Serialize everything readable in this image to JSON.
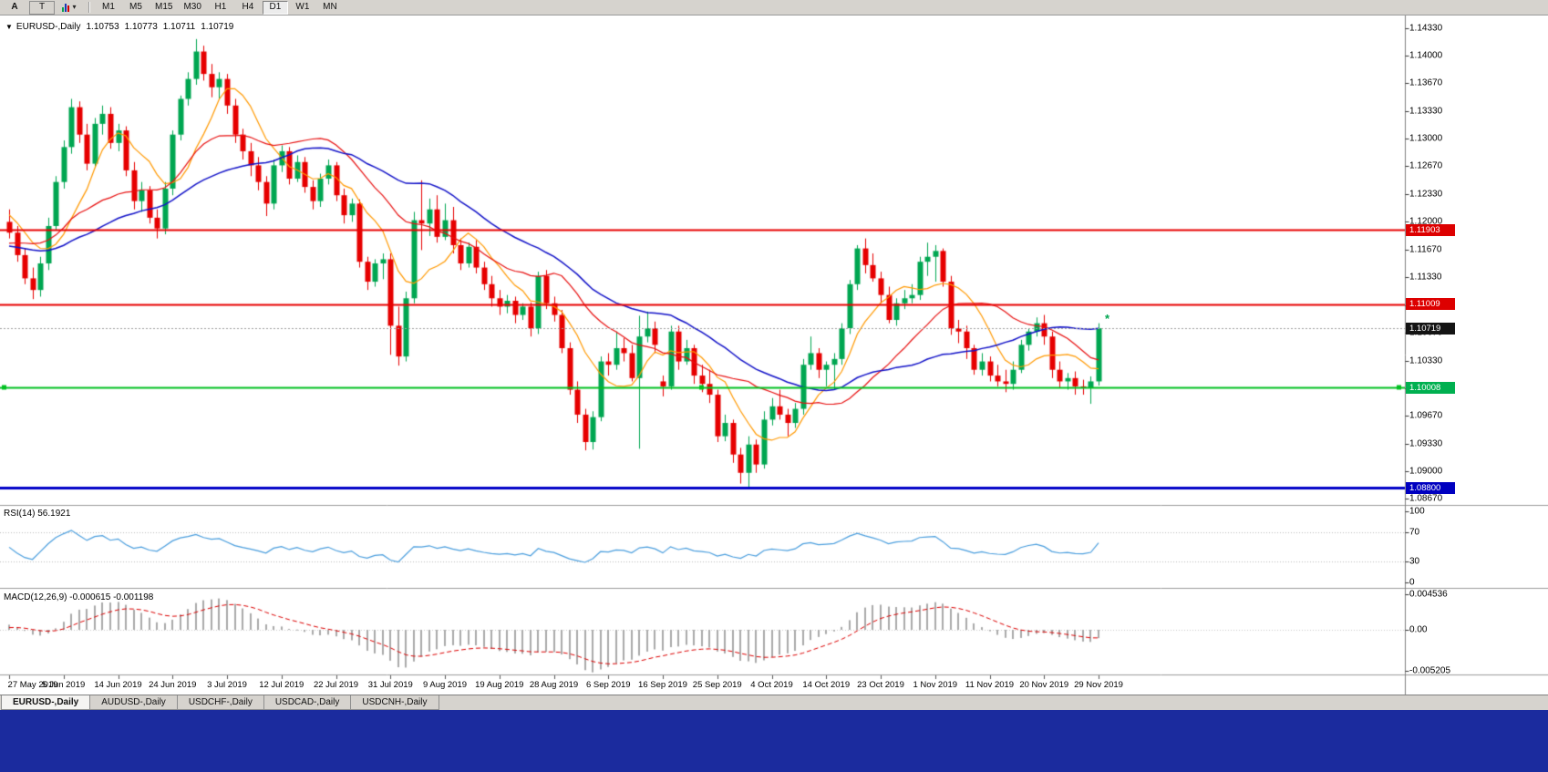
{
  "toolbar": {
    "left_buttons": [
      {
        "label": "A"
      },
      {
        "label": "T"
      }
    ],
    "tools_dropdown": {
      "icon": "chart-tools-icon",
      "caret": "▾"
    },
    "timeframes": [
      "M1",
      "M5",
      "M15",
      "M30",
      "H1",
      "H4",
      "D1",
      "W1",
      "MN"
    ],
    "active_timeframe": "D1"
  },
  "chart": {
    "info_line": {
      "expand_glyph": "▼",
      "symbol": "EURUSD-,Daily",
      "open": "1.10753",
      "high": "1.10773",
      "low": "1.10711",
      "close": "1.10719"
    },
    "price_axis": {
      "ticks": [
        "1.14330",
        "1.14000",
        "1.13670",
        "1.13330",
        "1.13000",
        "1.12670",
        "1.12330",
        "1.12000",
        "1.11670",
        "1.11330",
        "1.11000",
        "1.10670",
        "1.10330",
        "1.10000",
        "1.09670",
        "1.09330",
        "1.09000",
        "1.08670"
      ],
      "badges": [
        {
          "label": "1.11903",
          "value": 1.11903,
          "color": "#dd0000"
        },
        {
          "label": "1.11009",
          "value": 1.11009,
          "color": "#dd0000"
        },
        {
          "label": "1.10719",
          "value": 1.10719,
          "color": "#141414"
        },
        {
          "label": "1.10008",
          "value": 1.10008,
          "color": "#00b050"
        },
        {
          "label": "1.08800",
          "value": 1.088,
          "color": "#0000c0"
        }
      ]
    },
    "hlines": [
      {
        "value": 1.11903,
        "color": "#e80000",
        "width": 2,
        "handles": false
      },
      {
        "value": 1.11009,
        "color": "#e80000",
        "width": 2,
        "handles": false
      },
      {
        "value": 1.10008,
        "color": "#00c020",
        "width": 2,
        "handles": true
      },
      {
        "value": 1.088,
        "color": "#0000c8",
        "width": 3,
        "handles": false
      }
    ],
    "current_price": {
      "value": 1.10719,
      "line_color": "#a0a0a0"
    },
    "marker": {
      "glyph": "*",
      "price": 1.1082,
      "color": "#00a651"
    },
    "time_axis": [
      "27 May 2019",
      "5 Jun 2019",
      "14 Jun 2019",
      "24 Jun 2019",
      "3 Jul 2019",
      "12 Jul 2019",
      "22 Jul 2019",
      "31 Jul 2019",
      "9 Aug 2019",
      "19 Aug 2019",
      "28 Aug 2019",
      "6 Sep 2019",
      "16 Sep 2019",
      "25 Sep 2019",
      "4 Oct 2019",
      "14 Oct 2019",
      "23 Oct 2019",
      "1 Nov 2019",
      "11 Nov 2019",
      "20 Nov 2019",
      "29 Nov 2019"
    ]
  },
  "chart_data": {
    "type": "candlestick",
    "symbol": "EURUSD",
    "timeframe": "Daily",
    "title": "EURUSD-,Daily",
    "y_axis": {
      "min": 1.086,
      "max": 1.1448
    },
    "moving_averages": [
      {
        "name": "ma-fast",
        "method": "sma",
        "period": 8,
        "color": "#ff9900"
      },
      {
        "name": "ma-mid",
        "method": "sma",
        "period": 20,
        "color": "#e81010"
      },
      {
        "name": "ma-slow",
        "method": "sma",
        "period": 34,
        "color": "#1212c8"
      }
    ],
    "pre_history_closes": [
      1.1305,
      1.1298,
      1.129,
      1.1282,
      1.1288,
      1.1275,
      1.1268,
      1.1272,
      1.126,
      1.1252,
      1.1258,
      1.1245,
      1.1238,
      1.1242,
      1.123,
      1.1222,
      1.1228,
      1.1215,
      1.1208,
      1.1212,
      1.12,
      1.1195,
      1.1202,
      1.1188,
      1.118,
      1.1185,
      1.1172,
      1.1165,
      1.117,
      1.1158,
      1.115,
      1.1155,
      1.1162,
      1.1148,
      1.114,
      1.1145,
      1.1152,
      1.1138,
      1.113,
      1.1135,
      1.1128,
      1.1122,
      1.1118,
      1.1125,
      1.116,
      1.1185,
      1.1205,
      1.122,
      1.1235,
      1.1225,
      1.1215,
      1.1208,
      1.1198,
      1.1205,
      1.1195
    ],
    "candles": [
      [
        1.12,
        1.1215,
        1.118,
        1.1187
      ],
      [
        1.1187,
        1.1195,
        1.1152,
        1.116
      ],
      [
        1.116,
        1.1168,
        1.1125,
        1.1132
      ],
      [
        1.1132,
        1.1145,
        1.1107,
        1.1118
      ],
      [
        1.1118,
        1.1158,
        1.111,
        1.115
      ],
      [
        1.115,
        1.1205,
        1.1142,
        1.1195
      ],
      [
        1.1195,
        1.1255,
        1.119,
        1.1248
      ],
      [
        1.1248,
        1.1298,
        1.124,
        1.129
      ],
      [
        1.129,
        1.1348,
        1.1282,
        1.1338
      ],
      [
        1.1338,
        1.1345,
        1.1295,
        1.1305
      ],
      [
        1.1305,
        1.1318,
        1.1262,
        1.127
      ],
      [
        1.127,
        1.1325,
        1.1265,
        1.1318
      ],
      [
        1.1318,
        1.134,
        1.1305,
        1.133
      ],
      [
        1.133,
        1.1338,
        1.1288,
        1.1295
      ],
      [
        1.1295,
        1.1318,
        1.1285,
        1.131
      ],
      [
        1.131,
        1.1315,
        1.1255,
        1.1262
      ],
      [
        1.1262,
        1.1272,
        1.1215,
        1.1225
      ],
      [
        1.1225,
        1.1248,
        1.1212,
        1.1238
      ],
      [
        1.1238,
        1.1243,
        1.1198,
        1.1205
      ],
      [
        1.1205,
        1.1215,
        1.118,
        1.1192
      ],
      [
        1.1192,
        1.1248,
        1.1185,
        1.124
      ],
      [
        1.124,
        1.131,
        1.1232,
        1.1305
      ],
      [
        1.1305,
        1.1352,
        1.1298,
        1.1348
      ],
      [
        1.1348,
        1.138,
        1.134,
        1.1372
      ],
      [
        1.1372,
        1.142,
        1.1365,
        1.1405
      ],
      [
        1.1405,
        1.1412,
        1.137,
        1.1378
      ],
      [
        1.1378,
        1.139,
        1.135,
        1.1362
      ],
      [
        1.1362,
        1.138,
        1.1348,
        1.1372
      ],
      [
        1.1372,
        1.1378,
        1.133,
        1.134
      ],
      [
        1.134,
        1.1348,
        1.1295,
        1.1305
      ],
      [
        1.1305,
        1.1312,
        1.1275,
        1.1285
      ],
      [
        1.1285,
        1.1295,
        1.1255,
        1.1268
      ],
      [
        1.1268,
        1.1278,
        1.1238,
        1.1248
      ],
      [
        1.1248,
        1.1255,
        1.1207,
        1.1222
      ],
      [
        1.1222,
        1.1275,
        1.1215,
        1.1268
      ],
      [
        1.1268,
        1.1292,
        1.126,
        1.1285
      ],
      [
        1.1285,
        1.129,
        1.1245,
        1.1252
      ],
      [
        1.1252,
        1.128,
        1.1248,
        1.1272
      ],
      [
        1.1272,
        1.1278,
        1.1235,
        1.1242
      ],
      [
        1.1242,
        1.125,
        1.1215,
        1.1225
      ],
      [
        1.1225,
        1.1258,
        1.1218,
        1.1252
      ],
      [
        1.1252,
        1.1275,
        1.1245,
        1.1268
      ],
      [
        1.1268,
        1.1272,
        1.1225,
        1.1232
      ],
      [
        1.1232,
        1.124,
        1.1198,
        1.1208
      ],
      [
        1.1208,
        1.1228,
        1.12,
        1.1222
      ],
      [
        1.1222,
        1.1227,
        1.1145,
        1.1152
      ],
      [
        1.1152,
        1.1158,
        1.1118,
        1.1128
      ],
      [
        1.1128,
        1.1155,
        1.1122,
        1.115
      ],
      [
        1.115,
        1.1162,
        1.1131,
        1.1155
      ],
      [
        1.1155,
        1.1162,
        1.104,
        1.1075
      ],
      [
        1.1075,
        1.1098,
        1.1027,
        1.1038
      ],
      [
        1.1038,
        1.1116,
        1.1032,
        1.1108
      ],
      [
        1.1108,
        1.1212,
        1.1102,
        1.1202
      ],
      [
        1.1202,
        1.125,
        1.1166,
        1.1198
      ],
      [
        1.1198,
        1.1228,
        1.1183,
        1.1215
      ],
      [
        1.1215,
        1.1232,
        1.1175,
        1.1182
      ],
      [
        1.1182,
        1.1222,
        1.1178,
        1.1202
      ],
      [
        1.1202,
        1.1218,
        1.1162,
        1.1172
      ],
      [
        1.1172,
        1.118,
        1.1142,
        1.115
      ],
      [
        1.115,
        1.1175,
        1.1145,
        1.117
      ],
      [
        1.117,
        1.1178,
        1.1138,
        1.1145
      ],
      [
        1.1145,
        1.1152,
        1.1118,
        1.1125
      ],
      [
        1.1125,
        1.1135,
        1.1098,
        1.1108
      ],
      [
        1.1108,
        1.1118,
        1.1088,
        1.1098
      ],
      [
        1.1098,
        1.1112,
        1.109,
        1.1105
      ],
      [
        1.1105,
        1.111,
        1.1078,
        1.1088
      ],
      [
        1.1088,
        1.1102,
        1.1082,
        1.1098
      ],
      [
        1.1098,
        1.1103,
        1.1062,
        1.1072
      ],
      [
        1.1072,
        1.114,
        1.1065,
        1.1135
      ],
      [
        1.1135,
        1.1142,
        1.1095,
        1.1102
      ],
      [
        1.1102,
        1.111,
        1.108,
        1.1088
      ],
      [
        1.1088,
        1.1094,
        1.1042,
        1.1048
      ],
      [
        1.1048,
        1.1055,
        1.0992,
        1.0998
      ],
      [
        1.0998,
        1.1008,
        1.0958,
        1.0968
      ],
      [
        1.0968,
        1.0975,
        1.0925,
        1.0935
      ],
      [
        1.0935,
        1.0972,
        1.0926,
        1.0965
      ],
      [
        1.0965,
        1.1038,
        1.096,
        1.1032
      ],
      [
        1.1032,
        1.1042,
        1.1015,
        1.1028
      ],
      [
        1.1028,
        1.1068,
        1.1022,
        1.1048
      ],
      [
        1.1048,
        1.106,
        1.1032,
        1.1042
      ],
      [
        1.1042,
        1.1052,
        1.1008,
        1.1012
      ],
      [
        1.1012,
        1.1087,
        1.0927,
        1.1062
      ],
      [
        1.1062,
        1.1092,
        1.1055,
        1.1072
      ],
      [
        1.1072,
        1.108,
        1.1042,
        1.1052
      ],
      [
        1.1008,
        1.1015,
        1.099,
        1.1002
      ],
      [
        1.1002,
        1.1075,
        1.0998,
        1.1068
      ],
      [
        1.1068,
        1.1075,
        1.1022,
        1.1032
      ],
      [
        1.1032,
        1.1058,
        1.1028,
        1.1048
      ],
      [
        1.1048,
        1.1052,
        1.1005,
        1.1015
      ],
      [
        1.1015,
        1.1028,
        1.0995,
        1.1005
      ],
      [
        1.1005,
        1.1022,
        1.0982,
        1.0992
      ],
      [
        1.0992,
        1.0998,
        1.0935,
        1.0942
      ],
      [
        1.0942,
        1.0968,
        1.0936,
        1.0958
      ],
      [
        1.0958,
        1.0962,
        1.091,
        1.092
      ],
      [
        1.092,
        1.0928,
        1.0885,
        1.0898
      ],
      [
        1.0898,
        1.0942,
        1.0879,
        1.0932
      ],
      [
        1.0932,
        1.0938,
        1.0898,
        1.0908
      ],
      [
        1.0908,
        1.0972,
        1.0903,
        1.0962
      ],
      [
        1.0962,
        1.0988,
        1.0955,
        1.0978
      ],
      [
        1.0978,
        1.0998,
        1.0962,
        1.0968
      ],
      [
        1.0968,
        1.0975,
        1.0942,
        1.0958
      ],
      [
        1.0958,
        1.0982,
        1.0952,
        1.0975
      ],
      [
        1.0975,
        1.1035,
        1.0968,
        1.1028
      ],
      [
        1.1028,
        1.1062,
        1.1022,
        1.1042
      ],
      [
        1.1042,
        1.1048,
        1.1012,
        1.1022
      ],
      [
        1.1022,
        1.1032,
        1.1002,
        1.1028
      ],
      [
        1.1028,
        1.1042,
        1.0998,
        1.1035
      ],
      [
        1.1035,
        1.1078,
        1.1028,
        1.1072
      ],
      [
        1.1072,
        1.113,
        1.1065,
        1.1125
      ],
      [
        1.1125,
        1.1172,
        1.1118,
        1.1168
      ],
      [
        1.1168,
        1.118,
        1.1138,
        1.1148
      ],
      [
        1.1148,
        1.1162,
        1.1128,
        1.1132
      ],
      [
        1.1132,
        1.114,
        1.1102,
        1.1112
      ],
      [
        1.1112,
        1.1122,
        1.1078,
        1.1082
      ],
      [
        1.1082,
        1.1108,
        1.1075,
        1.1102
      ],
      [
        1.1102,
        1.1118,
        1.1095,
        1.1108
      ],
      [
        1.1108,
        1.1125,
        1.1102,
        1.1112
      ],
      [
        1.1112,
        1.1158,
        1.1106,
        1.1152
      ],
      [
        1.1152,
        1.1175,
        1.1135,
        1.1158
      ],
      [
        1.1158,
        1.1172,
        1.1128,
        1.1165
      ],
      [
        1.1165,
        1.1168,
        1.1122,
        1.1128
      ],
      [
        1.1128,
        1.1135,
        1.1064,
        1.1072
      ],
      [
        1.1072,
        1.1082,
        1.1054,
        1.1068
      ],
      [
        1.1068,
        1.1075,
        1.1035,
        1.1048
      ],
      [
        1.1048,
        1.1052,
        1.1016,
        1.1022
      ],
      [
        1.1022,
        1.1042,
        1.1015,
        1.1032
      ],
      [
        1.1032,
        1.1038,
        1.1008,
        1.1015
      ],
      [
        1.1015,
        1.1028,
        1.1002,
        1.1008
      ],
      [
        1.1008,
        1.1022,
        1.0995,
        1.1005
      ],
      [
        1.1005,
        1.1032,
        1.0998,
        1.1022
      ],
      [
        1.1022,
        1.1058,
        1.1018,
        1.1052
      ],
      [
        1.1052,
        1.1072,
        1.1045,
        1.1068
      ],
      [
        1.1068,
        1.1085,
        1.1062,
        1.1078
      ],
      [
        1.1078,
        1.1088,
        1.1052,
        1.1062
      ],
      [
        1.1062,
        1.1068,
        1.1012,
        1.1022
      ],
      [
        1.1022,
        1.1032,
        1.1,
        1.1008
      ],
      [
        1.1008,
        1.1018,
        1.0998,
        1.1012
      ],
      [
        1.1012,
        1.102,
        1.0992,
        1.1002
      ],
      [
        1.1002,
        1.101,
        1.0992,
        1.1
      ],
      [
        1.1,
        1.1014,
        1.0981,
        1.1008
      ],
      [
        1.1008,
        1.1078,
        1.1003,
        1.1072
      ]
    ]
  },
  "rsi_panel": {
    "label": "RSI(14) 56.1921",
    "period": 14,
    "current": "56.1921",
    "line_color": "#4a9ede",
    "axis_labels": [
      "100",
      "70",
      "30",
      "0"
    ],
    "axis_values": [
      100,
      70,
      30,
      0
    ],
    "level_lines": [
      70,
      30
    ]
  },
  "macd_panel": {
    "label": "MACD(12,26,9) -0.000615 -0.001198",
    "fast": 12,
    "slow": 26,
    "signal_period": 9,
    "macd_value": "-0.000615",
    "signal_value": "-0.001198",
    "histogram_color": "#a9a9a9",
    "signal_color": "#dd0000",
    "axis_labels": [
      "0.004536",
      "0.00",
      "-0.005205"
    ],
    "axis_values": [
      0.004536,
      0,
      -0.005205
    ]
  },
  "tabs": [
    {
      "label": "EURUSD-,Daily",
      "active": true
    },
    {
      "label": "AUDUSD-,Daily",
      "active": false
    },
    {
      "label": "USDCHF-,Daily",
      "active": false
    },
    {
      "label": "USDCAD-,Daily",
      "active": false
    },
    {
      "label": "USDCNH-,Daily",
      "active": false
    }
  ],
  "colors": {
    "up": "#00a651",
    "down": "#e60000",
    "toolbar_bg": "#d6d3ce",
    "pane_separator": "#9c9c9c",
    "axis_line": "#808080",
    "bottom_strip": "#1b2b9e",
    "chart_bg": "#ffffff"
  }
}
